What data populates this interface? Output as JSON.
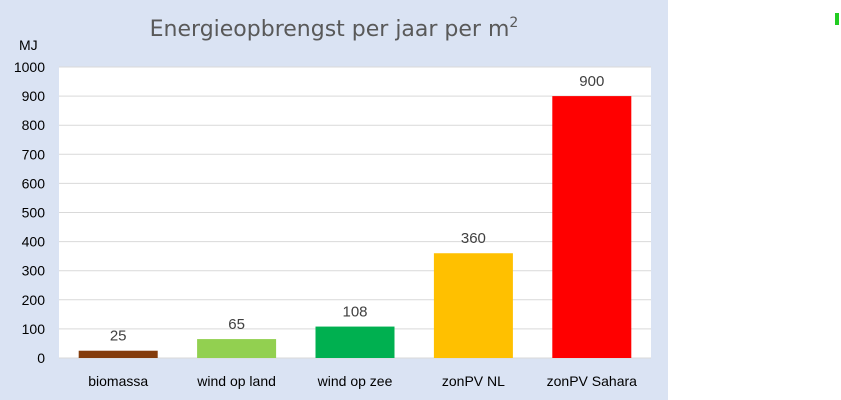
{
  "chart_data": {
    "type": "bar",
    "title": "Energieopbrengst per jaar per m",
    "title_superscript": "2",
    "ylabel": "MJ",
    "xlabel": "",
    "ylim": [
      0,
      1000
    ],
    "yticks": [
      0,
      100,
      200,
      300,
      400,
      500,
      600,
      700,
      800,
      900,
      1000
    ],
    "grid": true,
    "legend": "none",
    "categories": [
      "biomassa",
      "wind op land",
      "wind op zee",
      "zonPV NL",
      "zonPV Sahara"
    ],
    "values": [
      25,
      65,
      108,
      360,
      900
    ],
    "colors": [
      "#843c0c",
      "#92d050",
      "#00b050",
      "#ffc000",
      "#ff0000"
    ]
  },
  "colors": {
    "panel_background": "#dae3f3",
    "plot_background": "#ffffff",
    "marker": "#22cc22"
  }
}
